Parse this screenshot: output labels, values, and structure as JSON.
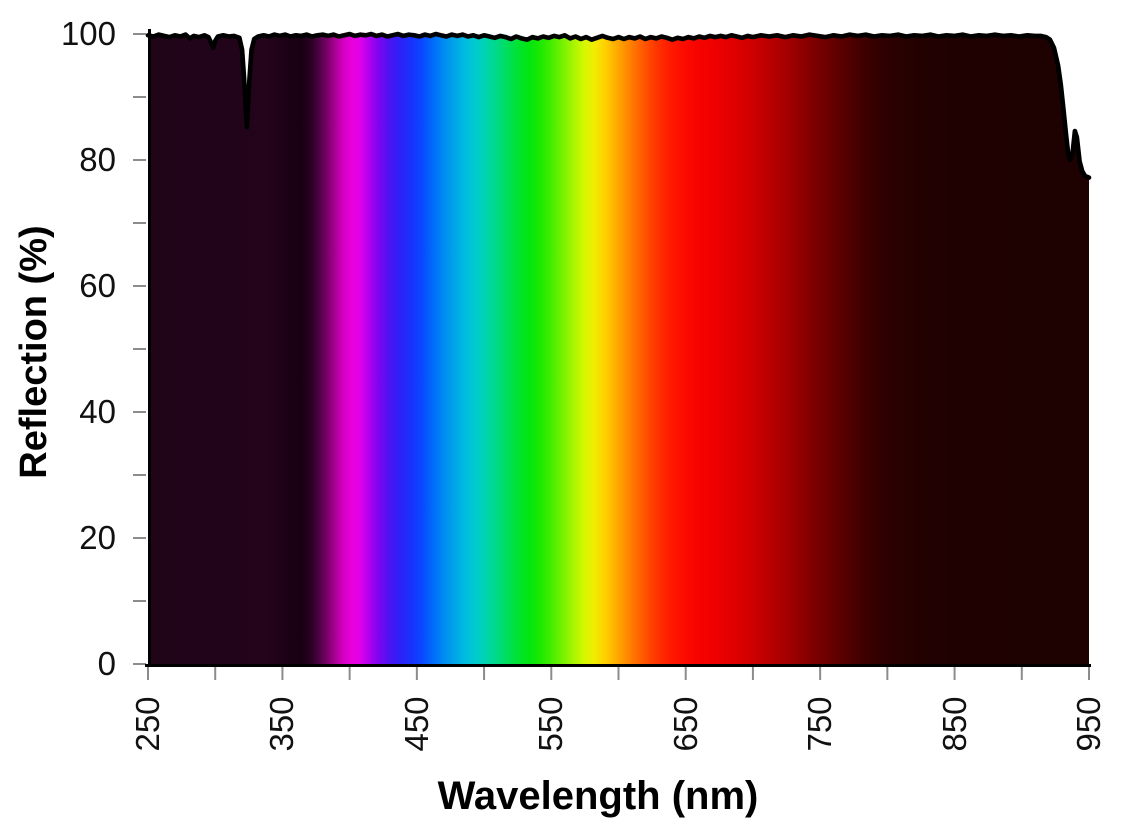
{
  "chart_data": {
    "type": "area",
    "title": "",
    "xlabel": "Wavelength (nm)",
    "ylabel": "Reflection (%)",
    "xlim": [
      250,
      950
    ],
    "ylim": [
      0,
      100
    ],
    "grid": "off",
    "legend": "none",
    "x_major_ticks": [
      250,
      350,
      450,
      550,
      650,
      750,
      850,
      950
    ],
    "x_minor_ticks": [
      300,
      400,
      500,
      600,
      700,
      800,
      900
    ],
    "y_major_ticks": [
      0,
      20,
      40,
      60,
      80,
      100
    ],
    "y_minor_ticks": [
      10,
      30,
      50,
      70,
      90
    ],
    "style": {
      "line_color": "#000000",
      "axis_color": "#000000",
      "tick_color": "#8c8c8c",
      "text_color": "#111111",
      "background": "#ffffff",
      "line_width": 4.6
    },
    "spectrum_gradient_stops": [
      {
        "wavelength": 250,
        "color": "#200418"
      },
      {
        "wavelength": 340,
        "color": "#23041b"
      },
      {
        "wavelength": 356,
        "color": "#1b0115"
      },
      {
        "wavelength": 364,
        "color": "#180111"
      },
      {
        "wavelength": 372,
        "color": "#2d0127"
      },
      {
        "wavelength": 380,
        "color": "#600253"
      },
      {
        "wavelength": 388,
        "color": "#a00189"
      },
      {
        "wavelength": 395,
        "color": "#d300c0"
      },
      {
        "wavelength": 402,
        "color": "#e900dd"
      },
      {
        "wavelength": 408,
        "color": "#e000ea"
      },
      {
        "wavelength": 415,
        "color": "#ad00ed"
      },
      {
        "wavelength": 422,
        "color": "#7a06f0"
      },
      {
        "wavelength": 430,
        "color": "#4a14f4"
      },
      {
        "wavelength": 438,
        "color": "#2c22f8"
      },
      {
        "wavelength": 446,
        "color": "#1932fc"
      },
      {
        "wavelength": 454,
        "color": "#0a48ff"
      },
      {
        "wavelength": 462,
        "color": "#006cfa"
      },
      {
        "wavelength": 470,
        "color": "#008bf2"
      },
      {
        "wavelength": 478,
        "color": "#00a5e8"
      },
      {
        "wavelength": 486,
        "color": "#00bce0"
      },
      {
        "wavelength": 494,
        "color": "#00ccce"
      },
      {
        "wavelength": 502,
        "color": "#00d4ac"
      },
      {
        "wavelength": 510,
        "color": "#00da84"
      },
      {
        "wavelength": 518,
        "color": "#00df58"
      },
      {
        "wavelength": 526,
        "color": "#00e32e"
      },
      {
        "wavelength": 534,
        "color": "#04e60e"
      },
      {
        "wavelength": 542,
        "color": "#1ce900"
      },
      {
        "wavelength": 550,
        "color": "#44ed00"
      },
      {
        "wavelength": 558,
        "color": "#74f100"
      },
      {
        "wavelength": 566,
        "color": "#a4f500"
      },
      {
        "wavelength": 574,
        "color": "#d2f800"
      },
      {
        "wavelength": 582,
        "color": "#f2ec00"
      },
      {
        "wavelength": 590,
        "color": "#ffd000"
      },
      {
        "wavelength": 598,
        "color": "#ffae00"
      },
      {
        "wavelength": 606,
        "color": "#ff8c00"
      },
      {
        "wavelength": 614,
        "color": "#ff6a00"
      },
      {
        "wavelength": 622,
        "color": "#ff4a00"
      },
      {
        "wavelength": 630,
        "color": "#ff3000"
      },
      {
        "wavelength": 638,
        "color": "#ff1c00"
      },
      {
        "wavelength": 648,
        "color": "#fc0c00"
      },
      {
        "wavelength": 658,
        "color": "#f70400"
      },
      {
        "wavelength": 670,
        "color": "#f00000"
      },
      {
        "wavelength": 684,
        "color": "#e20000"
      },
      {
        "wavelength": 698,
        "color": "#d00000"
      },
      {
        "wavelength": 712,
        "color": "#ba0000"
      },
      {
        "wavelength": 726,
        "color": "#a20000"
      },
      {
        "wavelength": 740,
        "color": "#880000"
      },
      {
        "wavelength": 754,
        "color": "#6e0000"
      },
      {
        "wavelength": 768,
        "color": "#560000"
      },
      {
        "wavelength": 782,
        "color": "#400000"
      },
      {
        "wavelength": 796,
        "color": "#300000"
      },
      {
        "wavelength": 812,
        "color": "#270101"
      },
      {
        "wavelength": 830,
        "color": "#220101"
      },
      {
        "wavelength": 860,
        "color": "#1f0101"
      },
      {
        "wavelength": 950,
        "color": "#1e0101"
      }
    ],
    "series": [
      {
        "name": "Reflection",
        "x": [
          250,
          254,
          258,
          262,
          266,
          270,
          274,
          278,
          281,
          284,
          288,
          292,
          295,
          297,
          298.5,
          300,
          302,
          306,
          310,
          314,
          318,
          320,
          321.5,
          323.5,
          325.5,
          327,
          329,
          332,
          336,
          340,
          344,
          348,
          352,
          356,
          360,
          364,
          368,
          372,
          376,
          380,
          384,
          388,
          392,
          396,
          400,
          404,
          408,
          412,
          416,
          420,
          424,
          428,
          432,
          436,
          440,
          444,
          448,
          452,
          456,
          460,
          464,
          468,
          472,
          476,
          480,
          484,
          488,
          492,
          496,
          500,
          504,
          508,
          512,
          516,
          520,
          524,
          528,
          532,
          536,
          540,
          544,
          548,
          552,
          556,
          560,
          564,
          568,
          572,
          576,
          580,
          584,
          588,
          592,
          596,
          600,
          604,
          608,
          612,
          616,
          620,
          624,
          628,
          632,
          636,
          640,
          644,
          648,
          652,
          656,
          660,
          664,
          668,
          672,
          676,
          680,
          684,
          688,
          692,
          696,
          700,
          706,
          712,
          718,
          724,
          730,
          736,
          742,
          748,
          754,
          760,
          766,
          772,
          778,
          784,
          790,
          796,
          802,
          808,
          814,
          820,
          826,
          832,
          838,
          844,
          850,
          856,
          862,
          868,
          874,
          880,
          886,
          892,
          898,
          904,
          910,
          914,
          918,
          921,
          924,
          927,
          929,
          931,
          933,
          934.5,
          936,
          937.5,
          939.5,
          941,
          943,
          945,
          947,
          950
        ],
        "y": [
          99.8,
          99.6,
          99.9,
          99.7,
          99.5,
          99.8,
          99.6,
          99.9,
          99.3,
          99.7,
          99.5,
          99.8,
          99.5,
          98.6,
          97.8,
          98.9,
          99.6,
          99.8,
          99.6,
          99.7,
          99.4,
          97.5,
          93.0,
          85.2,
          93.0,
          97.5,
          99.2,
          99.6,
          99.8,
          99.6,
          99.9,
          99.7,
          99.9,
          99.6,
          99.8,
          99.7,
          99.9,
          99.6,
          99.8,
          99.9,
          99.7,
          99.9,
          99.6,
          99.8,
          100.0,
          99.7,
          99.9,
          99.8,
          100.0,
          99.7,
          99.9,
          99.6,
          99.8,
          100.0,
          99.7,
          99.9,
          99.8,
          99.6,
          99.9,
          99.7,
          100.0,
          99.8,
          99.6,
          99.9,
          99.7,
          99.9,
          99.6,
          99.8,
          99.5,
          99.8,
          99.6,
          99.4,
          99.7,
          99.5,
          99.2,
          99.6,
          99.3,
          99.1,
          99.5,
          99.3,
          99.6,
          99.4,
          99.7,
          99.5,
          99.8,
          99.3,
          99.6,
          99.2,
          99.5,
          99.1,
          99.4,
          99.7,
          99.4,
          99.2,
          99.5,
          99.2,
          99.5,
          99.3,
          99.6,
          99.2,
          99.5,
          99.3,
          99.6,
          99.4,
          99.1,
          99.4,
          99.2,
          99.5,
          99.3,
          99.6,
          99.4,
          99.7,
          99.5,
          99.7,
          99.5,
          99.8,
          99.6,
          99.4,
          99.7,
          99.5,
          99.8,
          99.6,
          99.8,
          99.5,
          99.8,
          99.6,
          99.9,
          99.7,
          99.5,
          99.8,
          99.6,
          99.9,
          99.7,
          99.9,
          99.6,
          99.8,
          99.7,
          99.9,
          99.6,
          99.8,
          99.7,
          99.9,
          99.6,
          99.8,
          99.7,
          99.9,
          99.6,
          99.8,
          99.7,
          99.9,
          99.7,
          99.8,
          99.6,
          99.8,
          99.7,
          99.7,
          99.5,
          99.1,
          97.8,
          95.0,
          92.0,
          88.0,
          84.0,
          81.0,
          80.0,
          80.6,
          84.6,
          83.6,
          79.8,
          78.2,
          77.5,
          77.2
        ]
      }
    ]
  }
}
